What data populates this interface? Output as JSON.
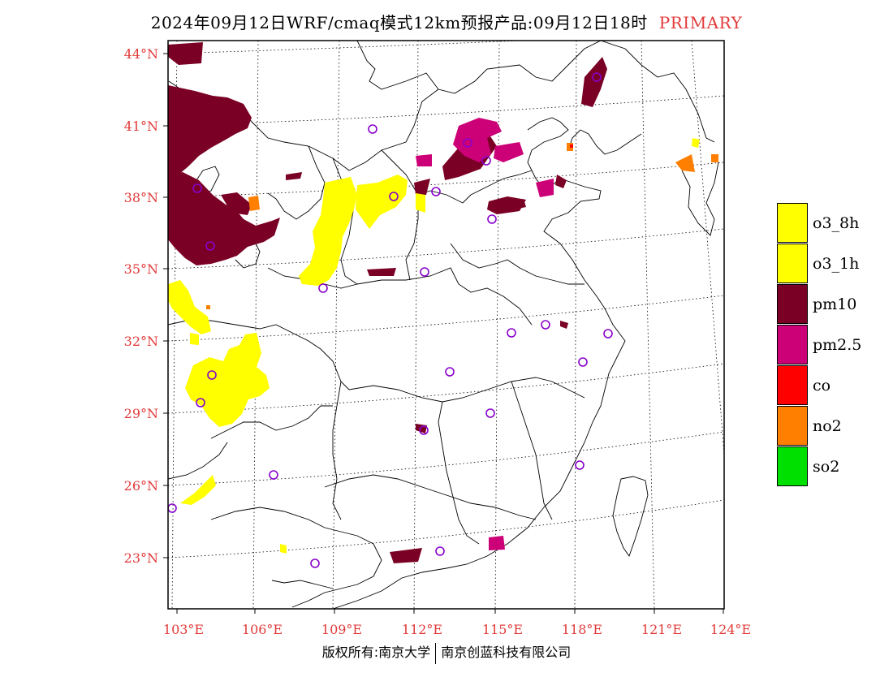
{
  "title": {
    "text": "2024年09月12日WRF/cmaq模式12km预报产品:09月12日18时",
    "flag": "PRIMARY",
    "flag_color": "#e23a3a"
  },
  "axes": {
    "lat_labels": [
      "44°N",
      "41°N",
      "38°N",
      "35°N",
      "32°N",
      "29°N",
      "26°N",
      "23°N"
    ],
    "lon_labels": [
      "103°E",
      "106°E",
      "109°E",
      "112°E",
      "115°E",
      "118°E",
      "121°E",
      "124°E"
    ],
    "label_color": "#e23a3a"
  },
  "legend": [
    {
      "label": "o3_8h",
      "color": "#ffff00"
    },
    {
      "label": "o3_1h",
      "color": "#ffff00"
    },
    {
      "label": "pm10",
      "color": "#7b0026"
    },
    {
      "label": "pm2.5",
      "color": "#cc0077"
    },
    {
      "label": "co",
      "color": "#ff0000"
    },
    {
      "label": "no2",
      "color": "#ff7f00"
    },
    {
      "label": "so2",
      "color": "#00e000"
    }
  ],
  "stations_color": "#8800cc",
  "footer": {
    "left": "版权所有:南京大学",
    "right": "南京创蓝科技有限公司"
  }
}
